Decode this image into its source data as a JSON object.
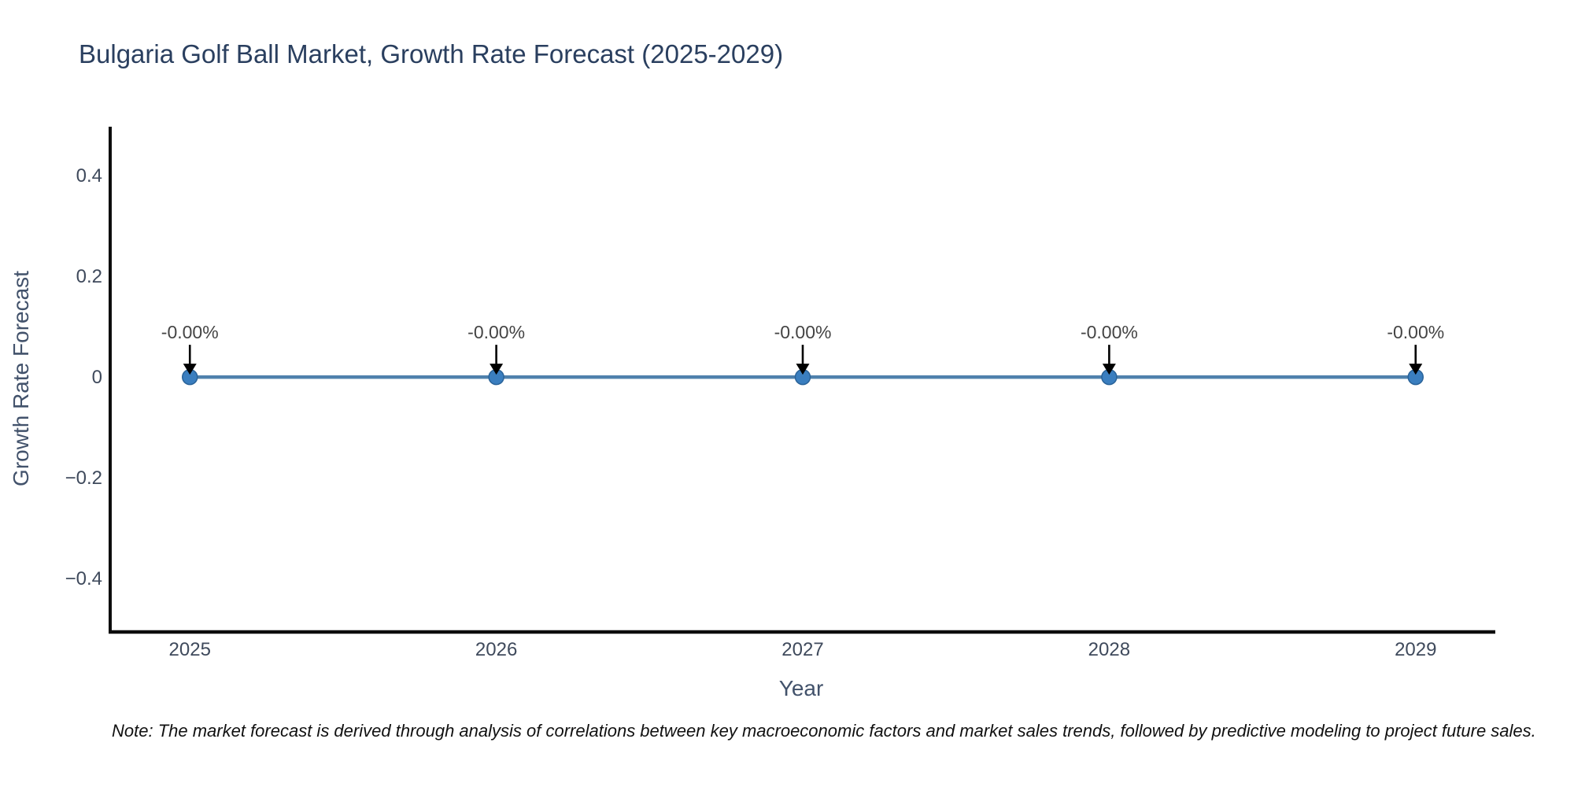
{
  "chart_data": {
    "type": "line",
    "title": "Bulgaria Golf Ball Market, Growth Rate Forecast (2025-2029)",
    "xlabel": "Year",
    "ylabel": "Growth Rate Forecast",
    "x": [
      2025,
      2026,
      2027,
      2028,
      2029
    ],
    "x_tick_labels": [
      "2025",
      "2026",
      "2027",
      "2028",
      "2029"
    ],
    "series": [
      {
        "name": "Growth Rate Forecast",
        "values": [
          0,
          0,
          0,
          0,
          0
        ],
        "point_labels": [
          "-0.00%",
          "-0.00%",
          "-0.00%",
          "-0.00%",
          "-0.00%"
        ]
      }
    ],
    "y_ticks": [
      {
        "value": 0.4,
        "label": "0.4"
      },
      {
        "value": 0.2,
        "label": "0.2"
      },
      {
        "value": 0,
        "label": "0"
      },
      {
        "value": -0.2,
        "label": "−0.2"
      },
      {
        "value": -0.4,
        "label": "−0.4"
      }
    ],
    "xlim": [
      2024.74,
      2029.26
    ],
    "ylim": [
      -0.506,
      0.497
    ],
    "grid": false,
    "legend_position": "none",
    "colors": {
      "line": "#4f81ad",
      "marker": "#3a7ebf",
      "marker_edge": "#2a6399",
      "axis": "#0d0d0d",
      "tick_text": "#3f4a5c",
      "annotation_text": "#444444",
      "arrow": "#000000",
      "title_text": "#2a3f5f"
    }
  },
  "note": {
    "text": "Note: The market forecast is derived through analysis of correlations between key macroeconomic factors and market sales trends, followed by predictive modeling to project future sales."
  }
}
